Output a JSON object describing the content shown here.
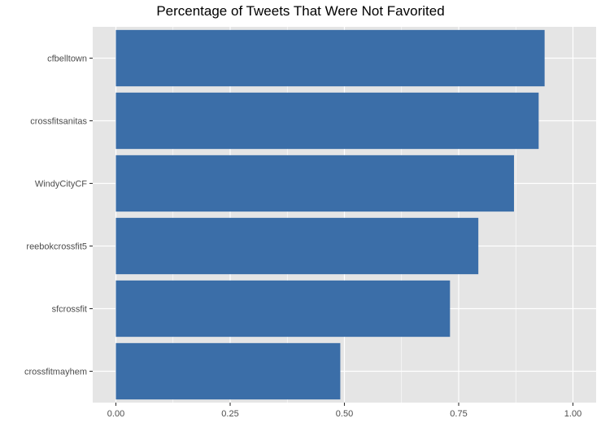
{
  "chart_data": {
    "type": "bar",
    "orientation": "horizontal",
    "title": "Percentage of Tweets That Were Not Favorited",
    "xlabel": "",
    "ylabel": "",
    "categories": [
      "cfbelltown",
      "crossfitsanitas",
      "WindyCityCF",
      "reebokcrossfit5",
      "sfcrossfit",
      "crossfitmayhem"
    ],
    "values": [
      0.938,
      0.925,
      0.871,
      0.793,
      0.731,
      0.491
    ],
    "xlim": [
      0,
      1
    ],
    "x_ticks": [
      0,
      0.25,
      0.5,
      0.75,
      1
    ],
    "x_tick_labels": [
      "0.00",
      "0.25",
      "0.50",
      "0.75",
      "1.00"
    ],
    "grid": true,
    "colors": {
      "bar": "#3b6ea8",
      "panel": "#e5e5e5",
      "grid": "#ffffff"
    }
  }
}
